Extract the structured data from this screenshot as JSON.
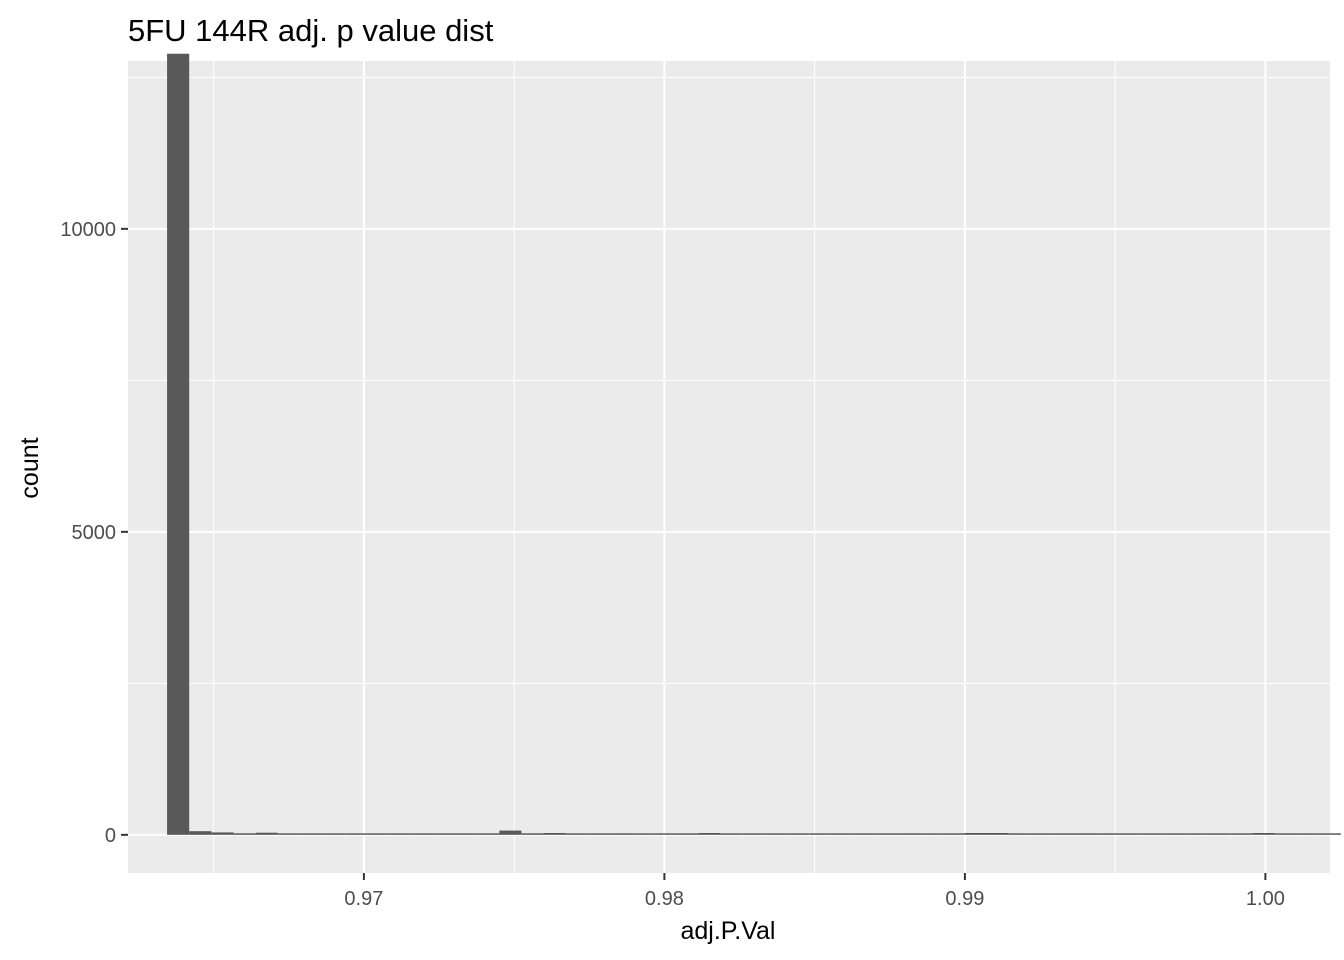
{
  "chart_data": {
    "type": "bar",
    "title": "5FU 144R adj. p value dist",
    "xlabel": "adj.P.Val",
    "ylabel": "count",
    "xlim": [
      0.96215,
      1.00215
    ],
    "ylim": [
      -630,
      12770
    ],
    "x_ticks": [
      0.97,
      0.98,
      0.99,
      1.0
    ],
    "x_tick_labels": [
      "0.97",
      "0.98",
      "0.99",
      "1.00"
    ],
    "y_ticks": [
      0,
      5000,
      10000
    ],
    "y_tick_labels": [
      "0",
      "5000",
      "10000"
    ],
    "grid": true,
    "colors": {
      "panel": "#ebebeb",
      "grid": "#ffffff",
      "bar": "#595959"
    },
    "bin_width": 0.000737,
    "bin_start": 0.96345,
    "counts": [
      12890,
      60,
      40,
      25,
      35,
      15,
      20,
      5,
      5,
      5,
      5,
      5,
      5,
      15,
      20,
      70,
      25,
      30,
      15,
      20,
      25,
      5,
      5,
      5,
      30,
      5,
      20,
      5,
      5,
      15,
      10,
      15,
      10,
      25,
      15,
      10,
      30,
      30,
      25,
      15,
      10,
      25,
      25,
      15,
      20,
      5,
      5,
      20,
      5,
      30,
      5,
      5,
      5
    ]
  }
}
